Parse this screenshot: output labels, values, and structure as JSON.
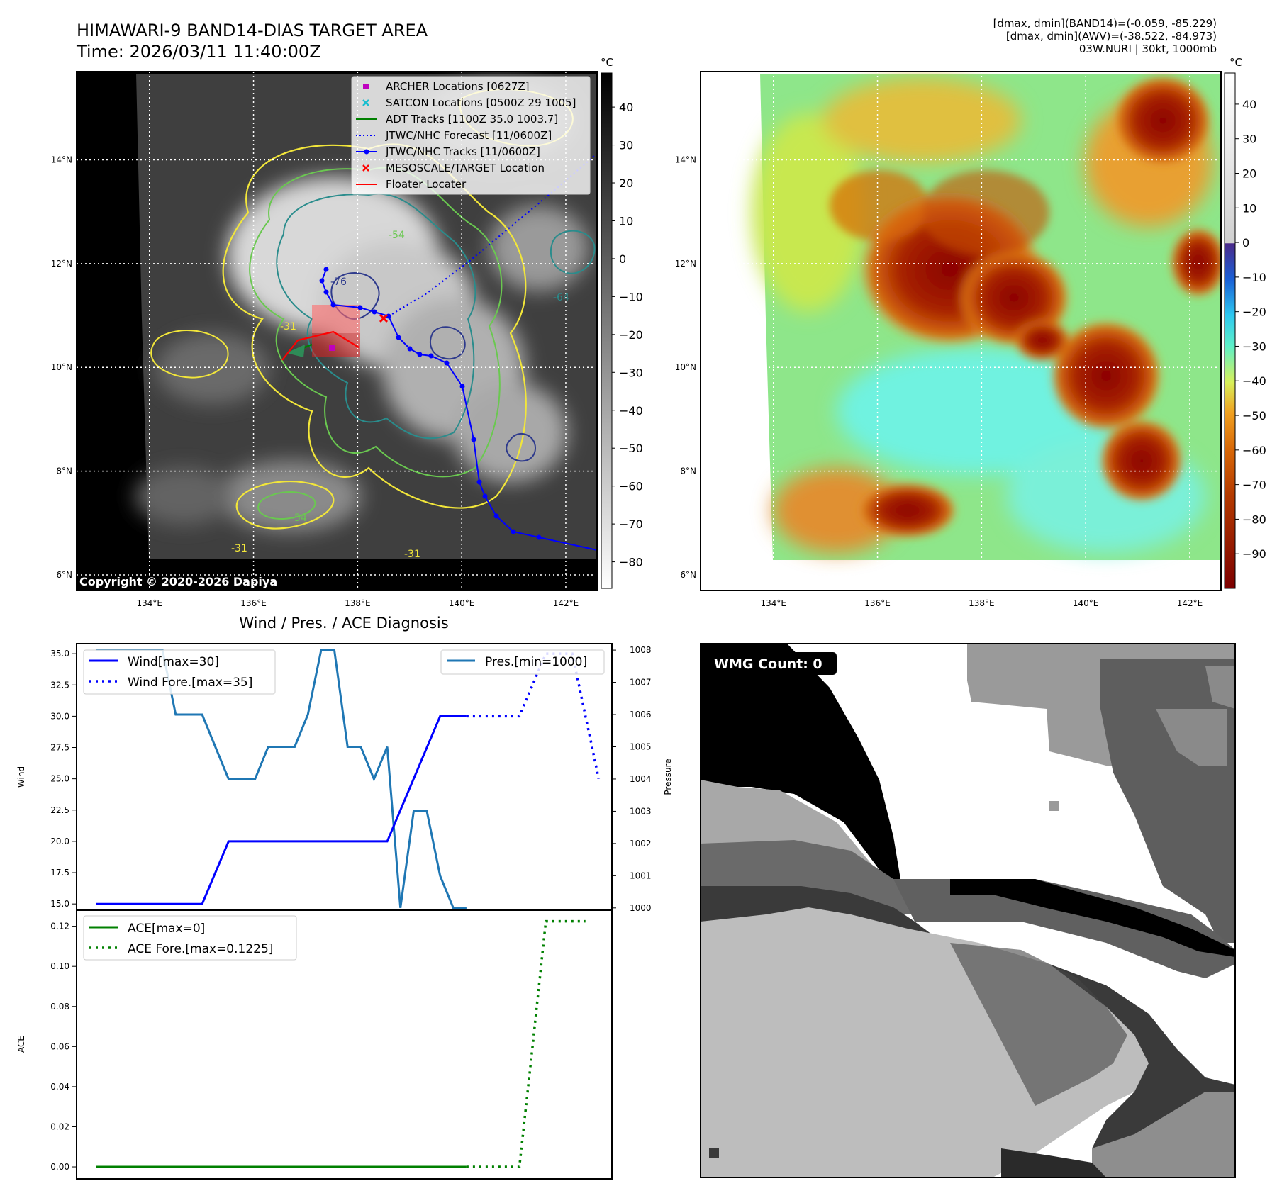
{
  "header": {
    "title_line1": "HIMAWARI-9 BAND14-DIAS TARGET AREA",
    "title_line2": "Time: 2026/03/11 11:40:00Z",
    "info_line1": "[dmax, dmin](BAND14)=(-0.059, -85.229)",
    "info_line2": "[dmax, dmin](AWV)=(-38.522, -84.973)",
    "info_line3": "03W.NURI | 30kt, 1000mb",
    "copyright": "Copyright © 2020-2026 Dapiya"
  },
  "maps": {
    "lat_labels": [
      "14°N",
      "12°N",
      "10°N",
      "8°N",
      "6°N"
    ],
    "lat_values": [
      14,
      12,
      10,
      8,
      6
    ],
    "lon_labels": [
      "134°E",
      "136°E",
      "138°E",
      "140°E",
      "142°E"
    ],
    "lon_values": [
      134,
      136,
      138,
      140,
      142
    ],
    "lon_range": [
      132.6,
      142.6
    ],
    "lat_range": [
      5.7,
      15.7
    ],
    "unit_label": "°C",
    "colorbar_gray_ticks": [
      "40",
      "30",
      "20",
      "10",
      "0",
      "−10",
      "−20",
      "−30",
      "−40",
      "−50",
      "−60",
      "−70",
      "−80"
    ],
    "colorbar_gray_values": [
      40,
      30,
      20,
      10,
      0,
      -10,
      -20,
      -30,
      -40,
      -50,
      -60,
      -70,
      -80
    ],
    "colorbar_gray_range": [
      -87,
      49
    ],
    "colorbar_color_ticks": [
      "40",
      "30",
      "20",
      "10",
      "0",
      "−10",
      "−20",
      "−30",
      "−40",
      "−50",
      "−60",
      "−70",
      "−80",
      "−90"
    ],
    "colorbar_color_values": [
      40,
      30,
      20,
      10,
      0,
      -10,
      -20,
      -30,
      -40,
      -50,
      -60,
      -70,
      -80,
      -90
    ],
    "colorbar_color_range": [
      -100,
      49
    ],
    "legend": [
      {
        "label": "ARCHER Locations [0627Z]",
        "marker": "square",
        "color": "#bf00bf"
      },
      {
        "label": "SATCON Locations [0500Z 29 1005]",
        "marker": "x",
        "color": "#17becf"
      },
      {
        "label": "ADT Tracks [1100Z 35.0 1003.7]",
        "marker": "line",
        "color": "#008000"
      },
      {
        "label": "JTWC/NHC Forecast [11/0600Z]",
        "marker": "dotted",
        "color": "#0000ff"
      },
      {
        "label": "JTWC/NHC Tracks [11/0600Z]",
        "marker": "line-dot",
        "color": "#0000ff"
      },
      {
        "label": "MESOSCALE/TARGET Location",
        "marker": "x",
        "color": "#ff0000"
      },
      {
        "label": "Floater Locater",
        "marker": "line",
        "color": "#ff0000"
      }
    ],
    "contour_labels": [
      "-54",
      "-76",
      "-31",
      "-64",
      "-31",
      "-31",
      "-54"
    ]
  },
  "chart_data": [
    {
      "type": "line",
      "title": "Wind / Pres. / ACE Diagnosis",
      "ylabel": "Wind",
      "y2label": "Pressure",
      "ylim": [
        14.5,
        35.8
      ],
      "y2lim": [
        999.93,
        1008.2
      ],
      "yticks": [
        15.0,
        17.5,
        20.0,
        22.5,
        25.0,
        27.5,
        30.0,
        32.5,
        35.0
      ],
      "y2ticks": [
        1000,
        1001,
        1002,
        1003,
        1004,
        1005,
        1006,
        1007,
        1008
      ],
      "x": [
        0,
        1,
        2,
        3,
        4,
        5,
        6,
        7,
        8,
        9,
        10,
        11,
        12,
        13,
        14,
        15,
        16,
        17,
        18,
        19,
        20,
        21,
        22,
        23,
        24,
        25,
        26,
        27,
        28,
        29,
        30,
        31,
        32,
        33,
        34,
        35,
        36,
        37,
        38
      ],
      "xlim": [
        -1.5,
        39
      ],
      "series": [
        {
          "name": "Wind[max=30]",
          "axis": "left",
          "color": "#0000ff",
          "style": "solid",
          "x": [
            0,
            2,
            4,
            6,
            8,
            10,
            12,
            14,
            16,
            18,
            20,
            22,
            24,
            26,
            28
          ],
          "values": [
            15,
            15,
            15,
            15,
            15,
            20,
            20,
            20,
            20,
            20,
            20,
            20,
            25,
            30,
            30
          ]
        },
        {
          "name": "Wind Fore.[max=35]",
          "axis": "left",
          "color": "#0000ff",
          "style": "dotted",
          "x": [
            28,
            30,
            32,
            34,
            36,
            38
          ],
          "values": [
            30,
            30,
            30,
            35,
            35,
            25
          ]
        },
        {
          "name": "Pres.[min=1000]",
          "axis": "right",
          "color": "#1f77b4",
          "style": "solid",
          "x": [
            0,
            1,
            2,
            3,
            4,
            5,
            6,
            7,
            8,
            9,
            10,
            11,
            12,
            13,
            14,
            15,
            16,
            17,
            18,
            19,
            20,
            21,
            22,
            23,
            24,
            25,
            26,
            27,
            28
          ],
          "values": [
            1008,
            1008,
            1008,
            1008,
            1008,
            1008,
            1006,
            1006,
            1006,
            1005,
            1004,
            1004,
            1004,
            1005,
            1005,
            1005,
            1006,
            1008,
            1008,
            1005,
            1005,
            1004,
            1005,
            1000,
            1003,
            1003,
            1001,
            1000,
            1000
          ]
        }
      ]
    },
    {
      "type": "line",
      "ylabel": "ACE",
      "ylim": [
        -0.006,
        0.128
      ],
      "yticks": [
        0.0,
        0.02,
        0.04,
        0.06,
        0.08,
        0.1,
        0.12
      ],
      "ytick_labels": [
        "0.00",
        "0.02",
        "0.04",
        "0.06",
        "0.08",
        "0.10",
        "0.12"
      ],
      "xlim": [
        -1.5,
        39
      ],
      "series": [
        {
          "name": "ACE[max=0]",
          "color": "#008000",
          "style": "solid",
          "x": [
            0,
            28
          ],
          "values": [
            0,
            0
          ]
        },
        {
          "name": "ACE Fore.[max=0.1225]",
          "color": "#008000",
          "style": "dotted",
          "x": [
            28,
            32,
            33,
            34,
            36,
            37
          ],
          "values": [
            0,
            0,
            0.06,
            0.1225,
            0.1225,
            0.1225
          ]
        }
      ]
    }
  ],
  "wmg": {
    "label": "WMG Count: 0"
  }
}
